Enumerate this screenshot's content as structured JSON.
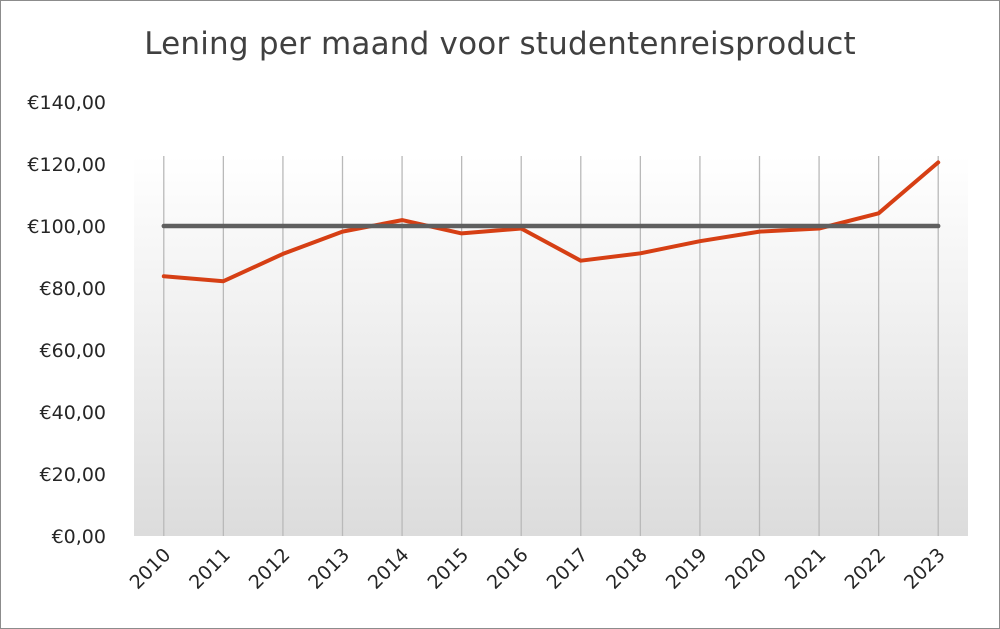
{
  "chart_data": {
    "type": "line",
    "title": "Lening per maand voor studentenreisproduct",
    "xlabel": "",
    "ylabel": "",
    "categories": [
      "2010",
      "2011",
      "2012",
      "2013",
      "2014",
      "2015",
      "2016",
      "2017",
      "2018",
      "2019",
      "2020",
      "2021",
      "2022",
      "2023"
    ],
    "series": [
      {
        "values": [
          83.8,
          82.2,
          91,
          98.2,
          101.9,
          97.6,
          99.2,
          88.8,
          91.2,
          95.1,
          98.2,
          99.2,
          104.1,
          120.5
        ],
        "color": "#d63f14"
      },
      {
        "values": [
          100,
          100,
          100,
          100,
          100,
          100,
          100,
          100,
          100,
          100,
          100,
          100,
          100,
          100
        ],
        "color": "#5f5f5f"
      }
    ],
    "ylim": [
      0,
      140
    ],
    "yticks": [
      "€0,00",
      "€20,00",
      "€40,00",
      "€60,00",
      "€80,00",
      "€100,00",
      "€120,00",
      "€140,00"
    ],
    "grid": "vertical",
    "legend": "none"
  }
}
